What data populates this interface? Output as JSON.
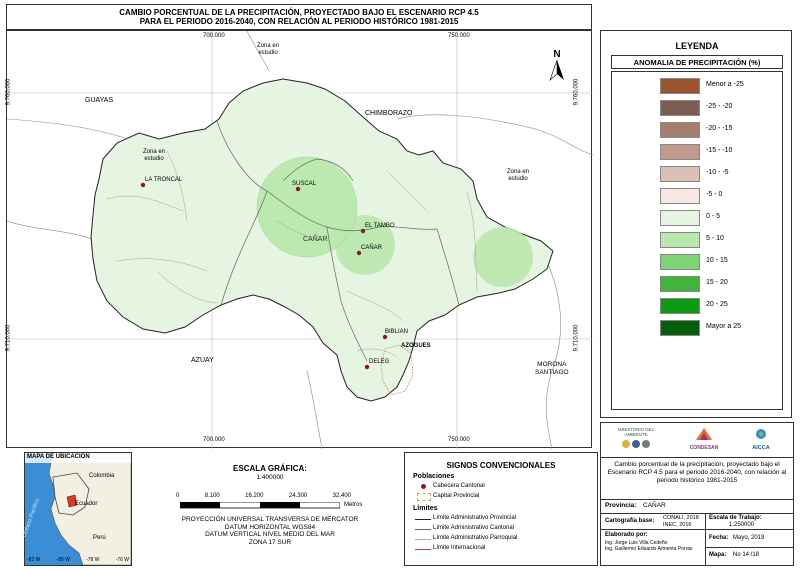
{
  "title": {
    "line1": "CAMBIO PORCENTUAL DE LA PRECIPITACIÓN, PROYECTADO BAJO EL ESCENARIO RCP 4.5",
    "line2": "PARA EL PERIODO 2016-2040, CON RELACIÓN AL PERIODO HISTÓRICO 1981-2015"
  },
  "map": {
    "grid_top": [
      "700.000",
      "750.000"
    ],
    "grid_bottom": [
      "700.000",
      "750.000"
    ],
    "grid_left": [
      "9.760.000",
      "9.710.000"
    ],
    "grid_right": [
      "9.760.000",
      "9.710.000"
    ],
    "regions": {
      "guayas": "GUAYAS",
      "chimborazo": "CHIMBORAZO",
      "azuay": "AZUAY",
      "morona": "MORONA SANTIAGO",
      "morona_l1": "MORONA",
      "morona_l2": "SANTIAGO",
      "canar_prov": "CAÑAR",
      "zona_top_l1": "Zona en",
      "zona_top_l2": "estudio",
      "zona_left_l1": "Zona en",
      "zona_left_l2": "estudio",
      "zona_right_l1": "Zona en",
      "zona_right_l2": "estudio"
    },
    "towns": [
      "LA TRONCAL",
      "SUSCAL",
      "EL TAMBO",
      "CAÑAR",
      "BIBLIAN",
      "AZOGUES",
      "DELEG"
    ],
    "north": "N"
  },
  "legend": {
    "title": "LEYENDA",
    "subtitle": "ANOMALIA DE PRECIPITACIÓN (%)",
    "items": [
      {
        "label": "Menor a -25",
        "color": "#9a5530"
      },
      {
        "label": "-25 - -20",
        "color": "#7c5c4f"
      },
      {
        "label": "-20 - -15",
        "color": "#a57d6c"
      },
      {
        "label": "-15 - -10",
        "color": "#c09b8d"
      },
      {
        "label": "-10 - -5",
        "color": "#dcc0b6"
      },
      {
        "label": "-5 - 0",
        "color": "#f7e6e2"
      },
      {
        "label": "0 - 5",
        "color": "#e6f5e2"
      },
      {
        "label": "5 - 10",
        "color": "#b9e8ad"
      },
      {
        "label": "10 - 15",
        "color": "#7fd374"
      },
      {
        "label": "15 - 20",
        "color": "#42b33c"
      },
      {
        "label": "20 - 25",
        "color": "#0d9a12"
      },
      {
        "label": "Mayor a 25",
        "color": "#065e0c"
      }
    ]
  },
  "locator": {
    "title": "MAPA DE UBICACIÓN",
    "colombia": "Colombia",
    "ecuador": "Ecuador",
    "peru": "Perú",
    "ocean": "Océano Pacífico",
    "lon_labels": [
      "-82 W",
      "-80 W",
      "-78 W",
      "-76 W"
    ]
  },
  "scale": {
    "title": "ESCALA GRÁFICA:",
    "ratio": "1:400000",
    "ticks": [
      "0",
      "8.100",
      "16.200",
      "24.300",
      "32.400"
    ],
    "unit": "Metros",
    "proj1": "PROYECCIÓN UNIVERSAL TRANSVERSA DE MERCATOR",
    "proj2": "DATUM HORIZONTAL WGS84",
    "proj3": "DATUM VERTICAL NIVEL MEDIO DEL MAR",
    "proj4": "ZONA 17 SUR"
  },
  "signs": {
    "title": "SIGNOS CONVENCIONALES",
    "poblaciones": "Poblaciones",
    "cabecera": "Cabecera Cantonal",
    "capital": "Capital Provincial",
    "limites": "Límites",
    "lim_prov": "Límite Administrativo Provincial",
    "lim_cant": "Límite Administrativo Cantonal",
    "lim_parr": "Límite Administrativo Parroquial",
    "lim_int": "Límite Internacional"
  },
  "info": {
    "logo_ministry": "MINISTERIO DEL AMBIENTE",
    "logo_condesan": "CONDESAN",
    "logo_aicca": "AICCA",
    "description": "Cambio porcentual de la precipitación, proyectado bajo el Escenario RCP 4.5 para el periodo 2016-2040, con relación al periodo histórico 1981-2015",
    "provincia_label": "Provincia:",
    "provincia_value": "CAÑAR",
    "carto_label": "Cartografía base:",
    "carto_value1": "CONALI, 2018",
    "carto_value2": "INEC, 2016",
    "escala_label": "Escala de Trabajo:",
    "escala_value": "1:250000",
    "elaborado_label": "Elaborado por:",
    "elaborado_1": "Ing. Jorge Luis Villa Cedeño",
    "elaborado_2": "Ing. Guillermo Eduardo Armenta Porras",
    "fecha_label": "Fecha:",
    "fecha_value": "Mayo, 2019",
    "mapa_label": "Mapa:",
    "mapa_value": "No 14 /18"
  }
}
